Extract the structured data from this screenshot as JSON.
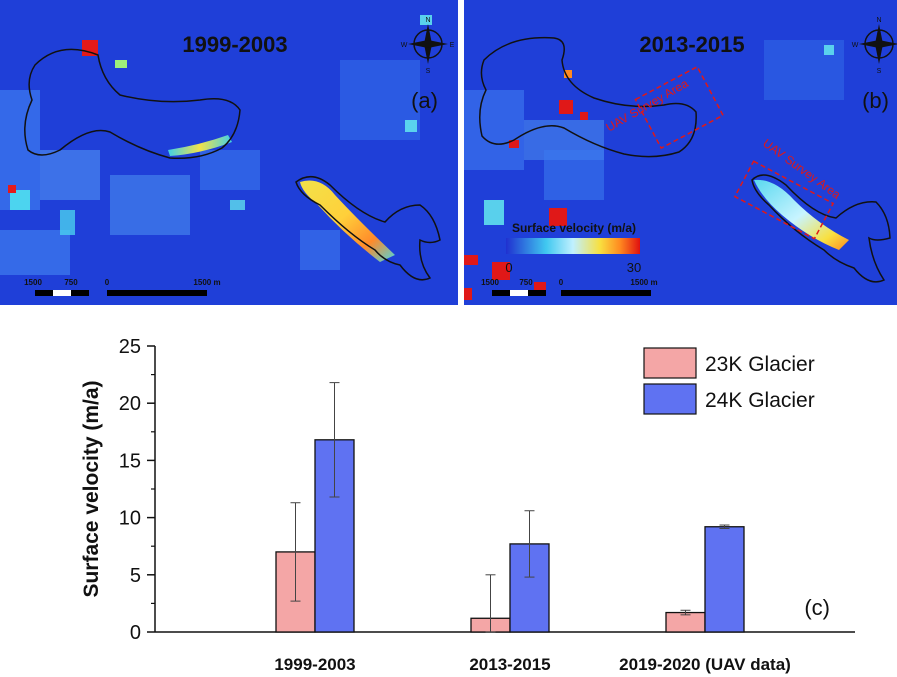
{
  "maps": [
    {
      "period": "1999-2003",
      "panel_label": "(a)",
      "scale_labels": [
        "1500",
        "750",
        "0",
        "1500 m"
      ],
      "compass": [
        "N",
        "W",
        "E",
        "S"
      ]
    },
    {
      "period": "2013-2015",
      "panel_label": "(b)",
      "survey_labels": [
        "UAV Survey Area",
        "UAV Survey Area"
      ],
      "colorbar": {
        "title": "Surface velocity (m/a)",
        "min": "0",
        "max": "30"
      },
      "scale_labels": [
        "1500",
        "750",
        "0",
        "1500 m"
      ],
      "compass": [
        "N",
        "W",
        "E",
        "S"
      ]
    }
  ],
  "colors": {
    "map_background": "#1f3fd8",
    "glacier_23k": "#f4a6a6",
    "glacier_24k": "#5f72f2",
    "survey_box": "#e01818",
    "outline": "#111111"
  },
  "chart_data": {
    "type": "bar",
    "panel_label": "(c)",
    "categories": [
      "1999-2003",
      "2013-2015",
      "2019-2020 (UAV data)"
    ],
    "series": [
      {
        "name": "23K Glacier",
        "values": [
          7.0,
          1.2,
          1.7
        ],
        "errors": [
          4.3,
          3.8,
          0.2
        ],
        "color": "#f4a6a6"
      },
      {
        "name": "24K Glacier",
        "values": [
          16.8,
          7.7,
          9.2
        ],
        "errors": [
          5.0,
          2.9,
          0.15
        ],
        "color": "#5f72f2"
      }
    ],
    "xlabel": "",
    "ylabel": "Surface velocity (m/a)",
    "ylim": [
      0,
      25
    ],
    "yticks": [
      0,
      5,
      10,
      15,
      20,
      25
    ],
    "legend_position": "top-right",
    "grid": false
  }
}
